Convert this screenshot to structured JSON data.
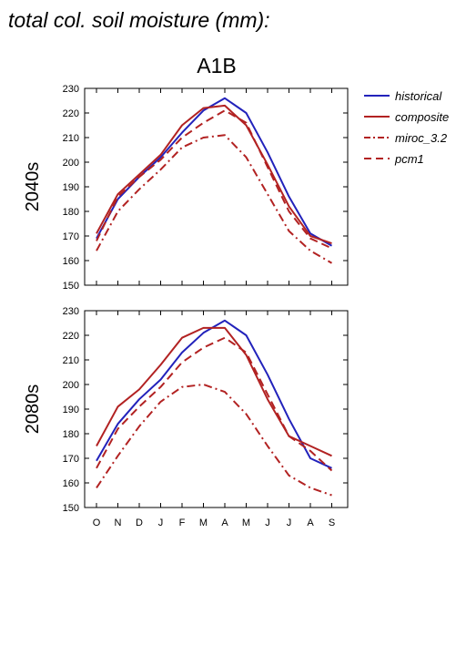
{
  "page_title": "total col. soil moisture (mm):",
  "chart_data": {
    "type": "line",
    "scenario_title": "A1B",
    "categories": [
      "O",
      "N",
      "D",
      "J",
      "F",
      "M",
      "A",
      "M",
      "J",
      "J",
      "A",
      "S"
    ],
    "y_ticks": [
      [
        150,
        160,
        170,
        180,
        190,
        200,
        210,
        220,
        230
      ],
      [
        150,
        160,
        170,
        180,
        190,
        200,
        210,
        220,
        230
      ]
    ],
    "ylim": [
      150,
      230
    ],
    "legend": [
      {
        "name": "historical",
        "color": "#2222bb",
        "dash": "solid"
      },
      {
        "name": "composite",
        "color": "#b22222",
        "dash": "solid"
      },
      {
        "name": "miroc_3.2",
        "color": "#b22222",
        "dash": "dashdot"
      },
      {
        "name": "pcm1",
        "color": "#b22222",
        "dash": "dashed"
      }
    ],
    "panels": [
      {
        "row_label": "2040s",
        "series": [
          {
            "name": "historical",
            "values": [
              169,
              185,
              194,
              202,
              212,
              221,
              226,
              220,
              204,
              186,
              171,
              166
            ]
          },
          {
            "name": "composite",
            "values": [
              171,
              187,
              195,
              203,
              215,
              222,
              223,
              215,
              199,
              182,
              170,
              167
            ]
          },
          {
            "name": "miroc_3.2",
            "values": [
              164,
              180,
              189,
              197,
              206,
              210,
              211,
              202,
              187,
              172,
              164,
              159
            ]
          },
          {
            "name": "pcm1",
            "values": [
              168,
              186,
              194,
              201,
              210,
              216,
              221,
              216,
              198,
              180,
              169,
              165
            ]
          }
        ]
      },
      {
        "row_label": "2080s",
        "series": [
          {
            "name": "historical",
            "values": [
              169,
              184,
              194,
              202,
              213,
              221,
              226,
              220,
              204,
              186,
              170,
              166
            ]
          },
          {
            "name": "composite",
            "values": [
              175,
              191,
              198,
              208,
              219,
              223,
              223,
              212,
              194,
              179,
              175,
              171
            ]
          },
          {
            "name": "miroc_3.2",
            "values": [
              158,
              171,
              183,
              193,
              199,
              200,
              197,
              188,
              175,
              163,
              158,
              155
            ]
          },
          {
            "name": "pcm1",
            "values": [
              166,
              182,
              191,
              199,
              209,
              215,
              219,
              213,
              196,
              179,
              173,
              165
            ]
          }
        ]
      }
    ]
  }
}
